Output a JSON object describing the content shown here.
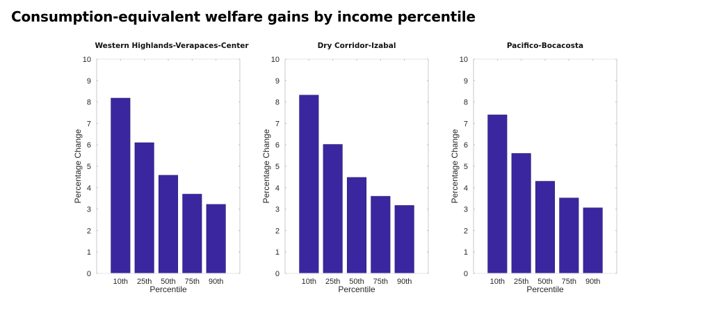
{
  "chart_data": [
    {
      "type": "bar",
      "title": "Western Highlands-Verapaces-Center",
      "xlabel": "Percentile",
      "ylabel": "Percentage Change",
      "categories": [
        "10th",
        "25th",
        "50th",
        "75th",
        "90th"
      ],
      "values": [
        8.18,
        6.1,
        4.58,
        3.7,
        3.22
      ],
      "ylim": [
        0,
        10
      ],
      "yticks": [
        0,
        1,
        2,
        3,
        4,
        5,
        6,
        7,
        8,
        9,
        10
      ],
      "grid": false,
      "color": "#3a27a0"
    },
    {
      "type": "bar",
      "title": "Dry Corridor-Izabal",
      "xlabel": "Percentile",
      "ylabel": "Percentage Change",
      "categories": [
        "10th",
        "25th",
        "50th",
        "75th",
        "90th"
      ],
      "values": [
        8.32,
        6.02,
        4.48,
        3.6,
        3.17
      ],
      "ylim": [
        0,
        10
      ],
      "yticks": [
        0,
        1,
        2,
        3,
        4,
        5,
        6,
        7,
        8,
        9,
        10
      ],
      "grid": false,
      "color": "#3a27a0"
    },
    {
      "type": "bar",
      "title": "Pacifico-Bocacosta",
      "xlabel": "Percentile",
      "ylabel": "Percentage Change",
      "categories": [
        "10th",
        "25th",
        "50th",
        "75th",
        "90th"
      ],
      "values": [
        7.4,
        5.6,
        4.3,
        3.52,
        3.06
      ],
      "ylim": [
        0,
        10
      ],
      "yticks": [
        0,
        1,
        2,
        3,
        4,
        5,
        6,
        7,
        8,
        9,
        10
      ],
      "grid": false,
      "color": "#3a27a0"
    }
  ],
  "figure": {
    "title": "Consumption-equivalent welfare gains by income percentile"
  }
}
